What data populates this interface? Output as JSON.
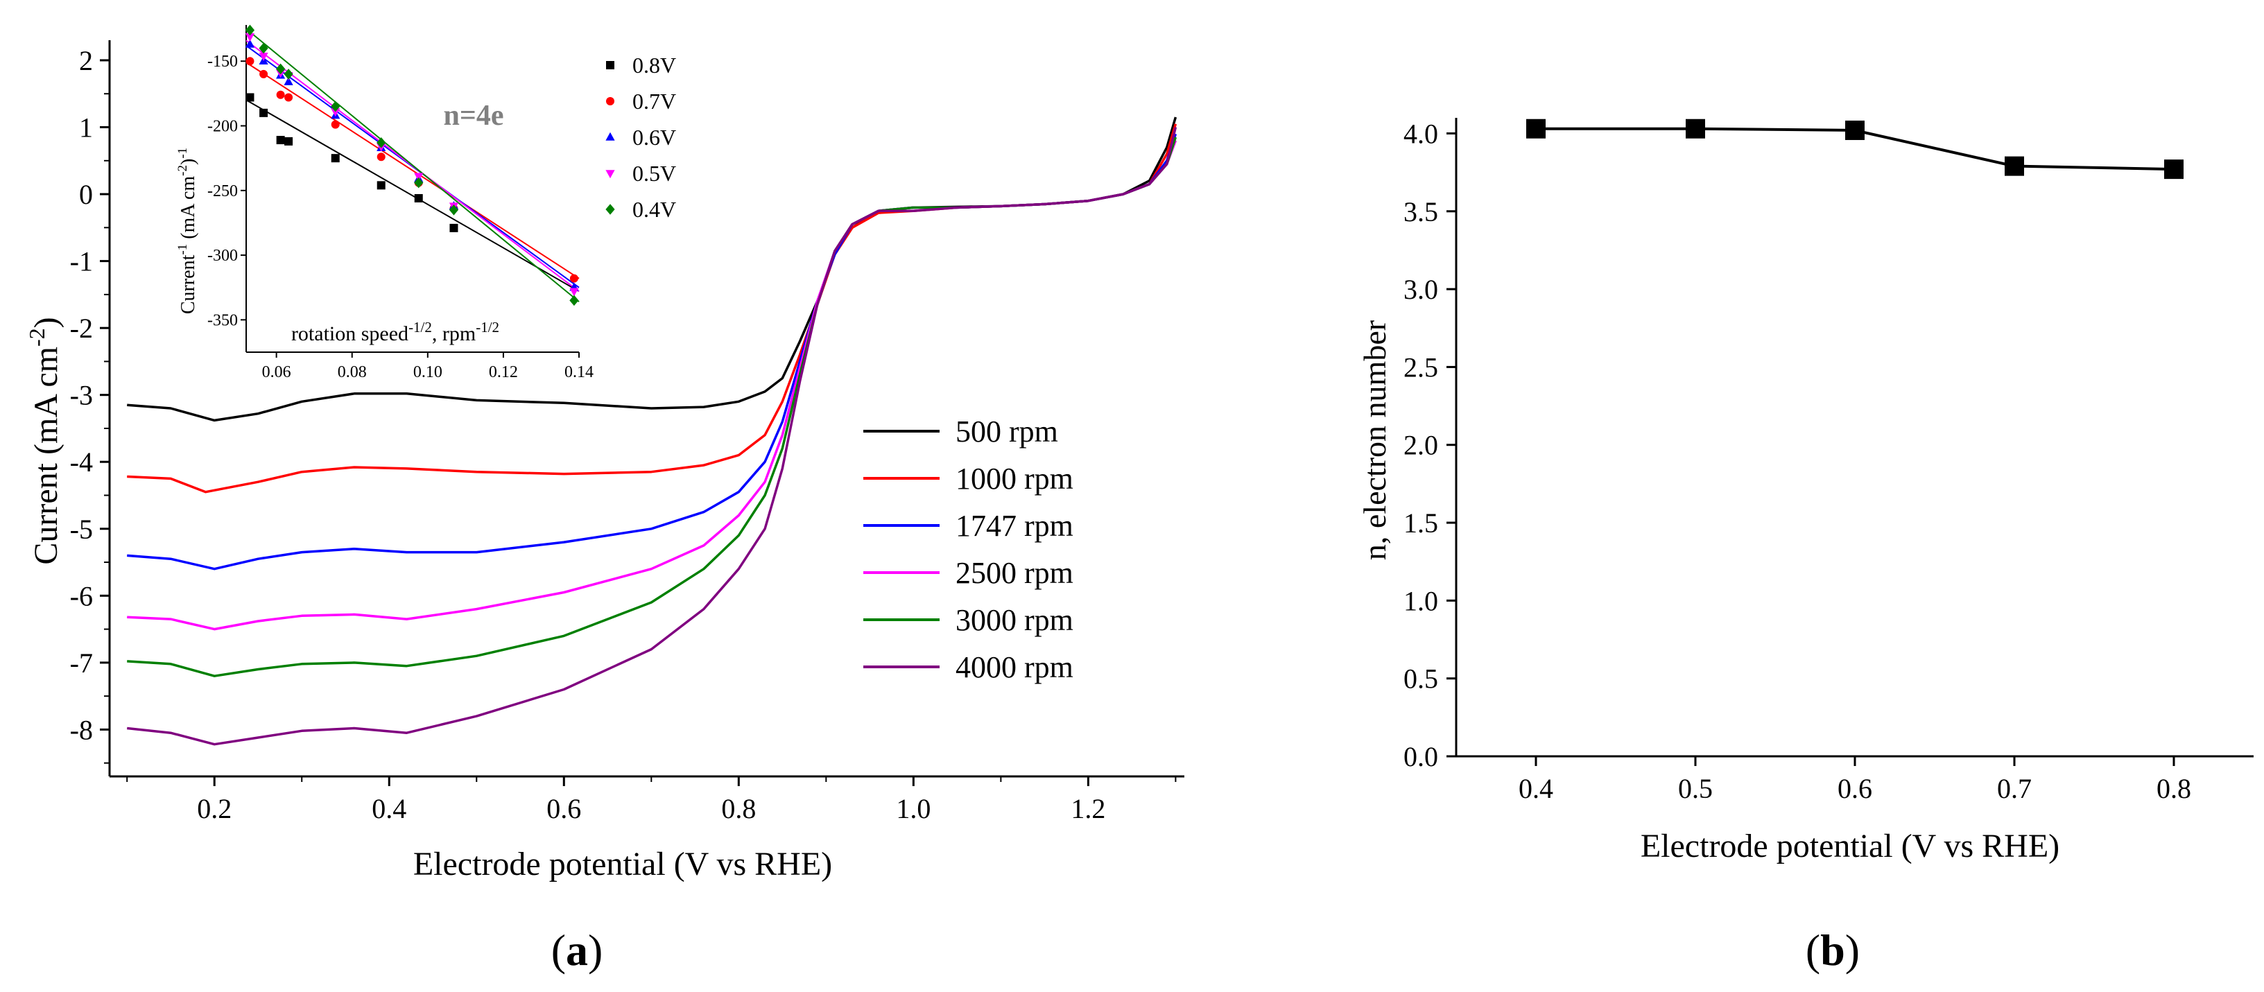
{
  "chart_data": [
    {
      "id": "a",
      "type": "line",
      "panel_label": "a",
      "xlabel": "Electrode potential (V vs RHE)",
      "ylabel": "Current (mA cm",
      "ylabel_sup": "-2",
      "ylabel_end": ")",
      "xlim": [
        0.08,
        1.31
      ],
      "ylim": [
        -8.7,
        2.3
      ],
      "xticks": [
        0.2,
        0.4,
        0.6,
        0.8,
        1.0,
        1.2
      ],
      "xtick_labels": [
        "0.2",
        "0.4",
        "0.6",
        "0.8",
        "1.0",
        "1.2"
      ],
      "yticks": [
        2,
        1,
        0,
        -1,
        -2,
        -3,
        -4,
        -5,
        -6,
        -7,
        -8
      ],
      "ytick_labels": [
        "2",
        "1",
        "0",
        "-1",
        "-2",
        "-3",
        "-4",
        "-5",
        "-6",
        "-7",
        "-8"
      ],
      "series": [
        {
          "name": "500 rpm",
          "color": "#000000",
          "points": [
            [
              0.1,
              -3.15
            ],
            [
              0.15,
              -3.2
            ],
            [
              0.2,
              -3.38
            ],
            [
              0.25,
              -3.28
            ],
            [
              0.3,
              -3.1
            ],
            [
              0.36,
              -2.98
            ],
            [
              0.42,
              -2.98
            ],
            [
              0.5,
              -3.08
            ],
            [
              0.6,
              -3.12
            ],
            [
              0.7,
              -3.2
            ],
            [
              0.76,
              -3.18
            ],
            [
              0.8,
              -3.1
            ],
            [
              0.83,
              -2.95
            ],
            [
              0.85,
              -2.75
            ],
            [
              0.87,
              -2.2
            ],
            [
              0.89,
              -1.6
            ],
            [
              0.91,
              -0.9
            ],
            [
              0.93,
              -0.5
            ],
            [
              0.96,
              -0.25
            ],
            [
              1.0,
              -0.2
            ],
            [
              1.05,
              -0.19
            ],
            [
              1.1,
              -0.18
            ],
            [
              1.15,
              -0.15
            ],
            [
              1.2,
              -0.1
            ],
            [
              1.24,
              0.0
            ],
            [
              1.27,
              0.2
            ],
            [
              1.29,
              0.7
            ],
            [
              1.3,
              1.15
            ]
          ]
        },
        {
          "name": "1000 rpm",
          "color": "#ff0000",
          "points": [
            [
              0.1,
              -4.22
            ],
            [
              0.15,
              -4.25
            ],
            [
              0.19,
              -4.45
            ],
            [
              0.25,
              -4.3
            ],
            [
              0.3,
              -4.15
            ],
            [
              0.36,
              -4.08
            ],
            [
              0.42,
              -4.1
            ],
            [
              0.5,
              -4.15
            ],
            [
              0.6,
              -4.18
            ],
            [
              0.7,
              -4.15
            ],
            [
              0.76,
              -4.05
            ],
            [
              0.8,
              -3.9
            ],
            [
              0.83,
              -3.6
            ],
            [
              0.85,
              -3.1
            ],
            [
              0.87,
              -2.4
            ],
            [
              0.89,
              -1.65
            ],
            [
              0.91,
              -0.9
            ],
            [
              0.93,
              -0.5
            ],
            [
              0.96,
              -0.28
            ],
            [
              1.0,
              -0.25
            ],
            [
              1.05,
              -0.2
            ],
            [
              1.1,
              -0.18
            ],
            [
              1.15,
              -0.15
            ],
            [
              1.2,
              -0.1
            ],
            [
              1.24,
              0.0
            ],
            [
              1.27,
              0.15
            ],
            [
              1.29,
              0.6
            ],
            [
              1.3,
              1.05
            ]
          ]
        },
        {
          "name": "1747 rpm",
          "color": "#0000ff",
          "points": [
            [
              0.1,
              -5.4
            ],
            [
              0.15,
              -5.45
            ],
            [
              0.2,
              -5.6
            ],
            [
              0.25,
              -5.45
            ],
            [
              0.3,
              -5.35
            ],
            [
              0.36,
              -5.3
            ],
            [
              0.42,
              -5.35
            ],
            [
              0.5,
              -5.35
            ],
            [
              0.6,
              -5.2
            ],
            [
              0.7,
              -5.0
            ],
            [
              0.76,
              -4.75
            ],
            [
              0.8,
              -4.45
            ],
            [
              0.83,
              -4.0
            ],
            [
              0.85,
              -3.4
            ],
            [
              0.87,
              -2.5
            ],
            [
              0.89,
              -1.6
            ],
            [
              0.91,
              -0.9
            ],
            [
              0.93,
              -0.45
            ],
            [
              0.96,
              -0.25
            ],
            [
              1.0,
              -0.2
            ],
            [
              1.05,
              -0.2
            ],
            [
              1.1,
              -0.18
            ],
            [
              1.15,
              -0.15
            ],
            [
              1.2,
              -0.1
            ],
            [
              1.24,
              0.0
            ],
            [
              1.27,
              0.15
            ],
            [
              1.29,
              0.5
            ],
            [
              1.3,
              0.9
            ]
          ]
        },
        {
          "name": "2500 rpm",
          "color": "#ff00ff",
          "points": [
            [
              0.1,
              -6.32
            ],
            [
              0.15,
              -6.35
            ],
            [
              0.2,
              -6.5
            ],
            [
              0.25,
              -6.38
            ],
            [
              0.3,
              -6.3
            ],
            [
              0.36,
              -6.28
            ],
            [
              0.42,
              -6.35
            ],
            [
              0.5,
              -6.2
            ],
            [
              0.6,
              -5.95
            ],
            [
              0.7,
              -5.6
            ],
            [
              0.76,
              -5.25
            ],
            [
              0.8,
              -4.8
            ],
            [
              0.83,
              -4.3
            ],
            [
              0.85,
              -3.6
            ],
            [
              0.87,
              -2.6
            ],
            [
              0.89,
              -1.6
            ],
            [
              0.91,
              -0.85
            ],
            [
              0.93,
              -0.45
            ],
            [
              0.96,
              -0.25
            ],
            [
              1.0,
              -0.2
            ],
            [
              1.05,
              -0.2
            ],
            [
              1.1,
              -0.18
            ],
            [
              1.15,
              -0.15
            ],
            [
              1.2,
              -0.1
            ],
            [
              1.24,
              0.0
            ],
            [
              1.27,
              0.15
            ],
            [
              1.29,
              0.45
            ],
            [
              1.3,
              0.8
            ]
          ]
        },
        {
          "name": "3000 rpm",
          "color": "#008000",
          "points": [
            [
              0.1,
              -6.98
            ],
            [
              0.15,
              -7.02
            ],
            [
              0.2,
              -7.2
            ],
            [
              0.25,
              -7.1
            ],
            [
              0.3,
              -7.02
            ],
            [
              0.36,
              -7.0
            ],
            [
              0.42,
              -7.05
            ],
            [
              0.5,
              -6.9
            ],
            [
              0.6,
              -6.6
            ],
            [
              0.7,
              -6.1
            ],
            [
              0.76,
              -5.6
            ],
            [
              0.8,
              -5.1
            ],
            [
              0.83,
              -4.5
            ],
            [
              0.85,
              -3.8
            ],
            [
              0.87,
              -2.7
            ],
            [
              0.89,
              -1.65
            ],
            [
              0.91,
              -0.85
            ],
            [
              0.93,
              -0.45
            ],
            [
              0.96,
              -0.25
            ],
            [
              1.0,
              -0.2
            ],
            [
              1.05,
              -0.2
            ],
            [
              1.1,
              -0.18
            ],
            [
              1.15,
              -0.15
            ],
            [
              1.2,
              -0.1
            ],
            [
              1.24,
              0.0
            ],
            [
              1.27,
              0.15
            ],
            [
              1.29,
              0.45
            ],
            [
              1.3,
              0.85
            ]
          ]
        },
        {
          "name": "4000 rpm",
          "color": "#800080",
          "points": [
            [
              0.1,
              -7.98
            ],
            [
              0.15,
              -8.05
            ],
            [
              0.2,
              -8.22
            ],
            [
              0.25,
              -8.12
            ],
            [
              0.3,
              -8.02
            ],
            [
              0.36,
              -7.98
            ],
            [
              0.42,
              -8.05
            ],
            [
              0.5,
              -7.8
            ],
            [
              0.6,
              -7.4
            ],
            [
              0.7,
              -6.8
            ],
            [
              0.76,
              -6.2
            ],
            [
              0.8,
              -5.6
            ],
            [
              0.83,
              -5.0
            ],
            [
              0.85,
              -4.1
            ],
            [
              0.87,
              -2.8
            ],
            [
              0.89,
              -1.65
            ],
            [
              0.91,
              -0.85
            ],
            [
              0.93,
              -0.45
            ],
            [
              0.96,
              -0.25
            ],
            [
              1.0,
              -0.25
            ],
            [
              1.05,
              -0.2
            ],
            [
              1.1,
              -0.18
            ],
            [
              1.15,
              -0.15
            ],
            [
              1.2,
              -0.1
            ],
            [
              1.24,
              0.0
            ],
            [
              1.27,
              0.15
            ],
            [
              1.29,
              0.45
            ],
            [
              1.3,
              1.0
            ]
          ]
        }
      ],
      "legend_position": "center-right",
      "inset": {
        "type": "scatter",
        "title": "n=4e",
        "xlabel": "rotation speed",
        "xlabel_sup": "-1/2",
        "xlabel_mid": ", rpm",
        "xlabel_sup2": "-1/2",
        "ylabel": "Current",
        "ylabel_sup": "-1",
        "ylabel_mid": " (mA cm",
        "ylabel_sup2": "-2",
        "ylabel_end": ")",
        "ylabel_sup3": "-1",
        "xlim": [
          0.052,
          0.14
        ],
        "ylim": [
          -375,
          -122
        ],
        "xticks": [
          0.06,
          0.08,
          0.1,
          0.12,
          0.14
        ],
        "xtick_labels": [
          "0.06",
          "0.08",
          "0.10",
          "0.12",
          "0.14"
        ],
        "yticks": [
          -150,
          -200,
          -250,
          -300,
          -350
        ],
        "ytick_labels": [
          "-150",
          "-200",
          "-250",
          "-300",
          "-350"
        ],
        "x": [
          0.053,
          0.0566,
          0.0611,
          0.0632,
          0.0756,
          0.0877,
          0.0976,
          0.1069,
          0.1387
        ],
        "series": [
          {
            "name": "0.8V",
            "color": "#000000",
            "marker": "square",
            "values": [
              -178,
              -190,
              -211,
              -212,
              -225,
              -246,
              -256,
              -279,
              null
            ],
            "fit": [
              [
                0.052,
                -180
              ],
              [
                0.14,
                -328
              ]
            ]
          },
          {
            "name": "0.7V",
            "color": "#ff0000",
            "marker": "circle",
            "values": [
              -150,
              -160,
              -176,
              -178,
              -199,
              -224,
              -244,
              -264,
              -318
            ],
            "fit": [
              [
                0.052,
                -151
              ],
              [
                0.14,
                -318
              ]
            ]
          },
          {
            "name": "0.6V",
            "color": "#0000ff",
            "marker": "triangle",
            "values": [
              -137,
              -150,
              -161,
              -166,
              -192,
              -217,
              -241,
              -262,
              -325
            ],
            "fit": [
              [
                0.052,
                -138
              ],
              [
                0.14,
                -325
              ]
            ]
          },
          {
            "name": "0.5V",
            "color": "#ff00ff",
            "marker": "triangle-down",
            "values": [
              -131,
              -146,
              -159,
              -161,
              -189,
              -216,
              -239,
              -262,
              -328
            ],
            "fit": [
              [
                0.052,
                -134
              ],
              [
                0.14,
                -328
              ]
            ]
          },
          {
            "name": "0.4V",
            "color": "#008000",
            "marker": "diamond",
            "values": [
              -126,
              -140,
              -156,
              -160,
              -185,
              -213,
              -244,
              -265,
              -335
            ],
            "fit": [
              [
                0.052,
                -125
              ],
              [
                0.14,
                -336
              ]
            ]
          }
        ]
      }
    },
    {
      "id": "b",
      "type": "line",
      "panel_label": "b",
      "xlabel": "Electrode potential (V vs RHE)",
      "ylabel": "n, electron number",
      "xlim": [
        0.35,
        0.85
      ],
      "ylim": [
        0.0,
        4.1
      ],
      "xticks": [
        0.4,
        0.5,
        0.6,
        0.7,
        0.8
      ],
      "xtick_labels": [
        "0.4",
        "0.5",
        "0.6",
        "0.7",
        "0.8"
      ],
      "yticks": [
        0.0,
        0.5,
        1.0,
        1.5,
        2.0,
        2.5,
        3.0,
        3.5,
        4.0
      ],
      "ytick_labels": [
        "0.0",
        "0.5",
        "1.0",
        "1.5",
        "2.0",
        "2.5",
        "3.0",
        "3.5",
        "4.0"
      ],
      "x": [
        0.4,
        0.5,
        0.6,
        0.7,
        0.8
      ],
      "values": [
        4.03,
        4.03,
        4.02,
        3.79,
        3.77
      ],
      "marker": "square",
      "color": "#000000"
    }
  ]
}
